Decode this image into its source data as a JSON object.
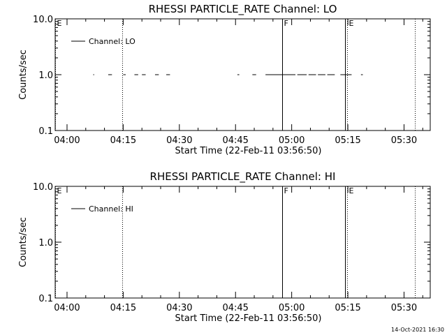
{
  "chart_data": [
    {
      "type": "line",
      "title": "RHESSI PARTICLE_RATE Channel: LO",
      "xlabel": "Start Time (22-Feb-11 03:56:50)",
      "ylabel": "Counts/sec",
      "yscale": "log",
      "ylim": [
        0.1,
        10.0
      ],
      "y_ticks": [
        "0.1",
        "1.0",
        "10.0"
      ],
      "x_ticks": [
        "04:00",
        "04:15",
        "04:30",
        "04:45",
        "05:00",
        "05:15",
        "05:30"
      ],
      "legend": {
        "position": "top-left",
        "entries": [
          "Channel: LO"
        ]
      },
      "markers": [
        {
          "label": "E",
          "time": "03:56:50",
          "style": "dotted"
        },
        {
          "label": "",
          "time": "04:14:50",
          "style": "dotted"
        },
        {
          "label": "F",
          "time": "04:57:30",
          "style": "solid"
        },
        {
          "label": "",
          "time": "05:14:15",
          "style": "solid"
        },
        {
          "label": "E",
          "time": "05:14:50",
          "style": "dotted"
        },
        {
          "label": "",
          "time": "05:32:50",
          "style": "dotted"
        }
      ],
      "series": [
        {
          "name": "Channel: LO",
          "segments": [
            {
              "start": "04:07:00",
              "end": "04:07:15",
              "value": 1.0
            },
            {
              "start": "04:11:00",
              "end": "04:12:00",
              "value": 1.0
            },
            {
              "start": "04:15:00",
              "end": "04:15:40",
              "value": 1.0
            },
            {
              "start": "04:18:00",
              "end": "04:19:00",
              "value": 1.0
            },
            {
              "start": "04:20:00",
              "end": "04:21:00",
              "value": 1.0
            },
            {
              "start": "04:23:30",
              "end": "04:24:30",
              "value": 1.0
            },
            {
              "start": "04:26:30",
              "end": "04:27:30",
              "value": 1.0
            },
            {
              "start": "04:45:30",
              "end": "04:46:00",
              "value": 1.0
            },
            {
              "start": "04:49:30",
              "end": "04:50:30",
              "value": 1.0
            },
            {
              "start": "04:53:00",
              "end": "05:01:00",
              "value": 1.0
            },
            {
              "start": "05:01:30",
              "end": "05:04:00",
              "value": 1.0
            },
            {
              "start": "05:04:30",
              "end": "05:06:30",
              "value": 1.0
            },
            {
              "start": "05:07:00",
              "end": "05:09:00",
              "value": 1.0
            },
            {
              "start": "05:09:30",
              "end": "05:11:30",
              "value": 1.0
            },
            {
              "start": "05:13:00",
              "end": "05:16:00",
              "value": 1.0
            },
            {
              "start": "05:18:30",
              "end": "05:19:00",
              "value": 1.0
            }
          ]
        }
      ]
    },
    {
      "type": "line",
      "title": "RHESSI PARTICLE_RATE Channel: HI",
      "xlabel": "Start Time (22-Feb-11 03:56:50)",
      "ylabel": "Counts/sec",
      "yscale": "log",
      "ylim": [
        0.1,
        10.0
      ],
      "y_ticks": [
        "0.1",
        "1.0",
        "10.0"
      ],
      "x_ticks": [
        "04:00",
        "04:15",
        "04:30",
        "04:45",
        "05:00",
        "05:15",
        "05:30"
      ],
      "legend": {
        "position": "top-left",
        "entries": [
          "Channel: HI"
        ]
      },
      "markers": [
        {
          "label": "E",
          "time": "03:56:50",
          "style": "dotted"
        },
        {
          "label": "",
          "time": "04:14:50",
          "style": "dotted"
        },
        {
          "label": "F",
          "time": "04:57:30",
          "style": "solid"
        },
        {
          "label": "",
          "time": "05:14:15",
          "style": "solid"
        },
        {
          "label": "E",
          "time": "05:14:50",
          "style": "dotted"
        },
        {
          "label": "",
          "time": "05:32:50",
          "style": "dotted"
        }
      ],
      "series": [
        {
          "name": "Channel: HI",
          "segments": []
        }
      ]
    }
  ],
  "footer": {
    "timestamp": "14-Oct-2021 16:30"
  }
}
